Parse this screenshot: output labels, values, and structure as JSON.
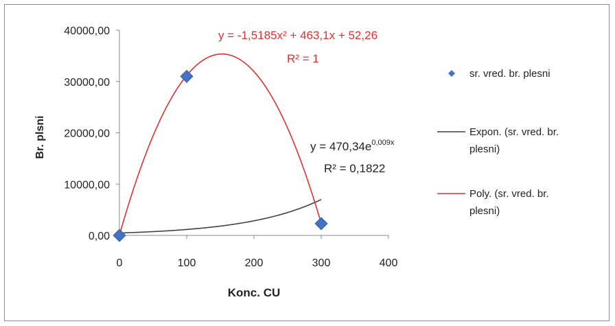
{
  "chart_data": {
    "type": "scatter",
    "xlabel": "Konc. CU",
    "ylabel": "Br. plsni",
    "xlim": [
      0,
      400
    ],
    "ylim": [
      0,
      40000
    ],
    "x_ticks": [
      "0",
      "100",
      "200",
      "300",
      "400"
    ],
    "y_ticks": [
      "0,00",
      "10000,00",
      "20000,00",
      "30000,00",
      "40000,00"
    ],
    "grid": false,
    "legend_position": "right",
    "series": [
      {
        "name": "sr. vred. br. plesni",
        "kind": "scatter",
        "marker": "diamond",
        "color": "#4472c4",
        "x": [
          0,
          100,
          300
        ],
        "y": [
          0,
          31000,
          2300
        ]
      }
    ],
    "trendlines": [
      {
        "name": "Expon. (sr. vred. br. plesni)",
        "kind": "exponential",
        "a": 470.34,
        "b": 0.009,
        "color": "#404040",
        "equation": "y = 470,34e",
        "equation_exp": "0,009x",
        "r2": "R² = 0,1822"
      },
      {
        "name": "Poly. (sr. vred. br. plesni)",
        "kind": "polynomial",
        "coefficients": [
          -1.5185,
          463.1,
          52.26
        ],
        "color": "#e03030",
        "equation": "y = -1,5185x² + 463,1x + 52,26",
        "r2": "R² = 1"
      }
    ]
  },
  "legend": {
    "items": [
      {
        "label_lines": [
          "sr. vred. br. plesni"
        ],
        "symbol": "diamond",
        "color": "#4472c4"
      },
      {
        "label_lines": [
          "Expon. (sr. vred. br.",
          "plesni)"
        ],
        "symbol": "line",
        "color": "#404040"
      },
      {
        "label_lines": [
          "Poly. (sr. vred. br.",
          "plesni)"
        ],
        "symbol": "line",
        "color": "#e03030"
      }
    ]
  }
}
